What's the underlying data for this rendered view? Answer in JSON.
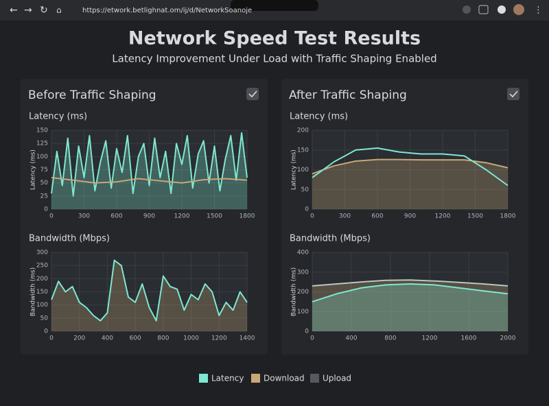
{
  "browser": {
    "url": "https://etwork.betlighnat.om/ij/d/NetworkSoanoje"
  },
  "header": {
    "title": "Network Speed Test Results",
    "subtitle": "Latency Improvement Under Load with Traffic Shaping Enabled"
  },
  "panels": [
    {
      "title": "Before Traffic Shaping",
      "charts": [
        {
          "type": "line",
          "title": "Latency (ms)",
          "ylabel": "Latency (ms)",
          "xlim": [
            0,
            1800
          ],
          "ylim": [
            0,
            150
          ],
          "xticks": [
            0,
            300,
            600,
            900,
            1200,
            1500,
            1800
          ],
          "yticks": [
            0,
            25,
            50,
            75,
            100,
            125,
            150
          ],
          "grid": true,
          "series": [
            {
              "color": "#7ee8d2",
              "fill": true,
              "x": [
                0,
                50,
                100,
                150,
                200,
                250,
                300,
                350,
                400,
                450,
                500,
                550,
                600,
                650,
                700,
                750,
                800,
                850,
                900,
                950,
                1000,
                1050,
                1100,
                1150,
                1200,
                1250,
                1300,
                1350,
                1400,
                1450,
                1500,
                1550,
                1600,
                1650,
                1700,
                1750,
                1800
              ],
              "values": [
                30,
                110,
                45,
                135,
                25,
                120,
                60,
                140,
                35,
                90,
                130,
                40,
                115,
                70,
                140,
                30,
                100,
                125,
                45,
                135,
                60,
                110,
                30,
                125,
                85,
                140,
                40,
                105,
                130,
                50,
                120,
                35,
                95,
                140,
                55,
                145,
                60
              ]
            },
            {
              "color": "#c8a878",
              "fill": false,
              "x": [
                0,
                200,
                400,
                600,
                800,
                1000,
                1200,
                1400,
                1600,
                1800
              ],
              "values": [
                60,
                55,
                50,
                52,
                58,
                54,
                50,
                56,
                58,
                55
              ]
            }
          ]
        },
        {
          "type": "line",
          "title": "Bandwidth (Mbps)",
          "ylabel": "Bandwidth (ms)",
          "xlim": [
            0,
            1400
          ],
          "ylim": [
            0,
            300
          ],
          "xticks": [
            0,
            200,
            400,
            600,
            800,
            1000,
            1200,
            1400
          ],
          "yticks": [
            0,
            50,
            100,
            150,
            200,
            250,
            300
          ],
          "grid": true,
          "series": [
            {
              "color": "#7ee8d2",
              "fill": true,
              "fillColor": "#c8a878",
              "x": [
                0,
                50,
                100,
                150,
                200,
                250,
                300,
                350,
                400,
                450,
                500,
                550,
                600,
                650,
                700,
                750,
                800,
                850,
                900,
                950,
                1000,
                1050,
                1100,
                1150,
                1200,
                1250,
                1300,
                1350,
                1400
              ],
              "values": [
                120,
                190,
                150,
                170,
                110,
                90,
                60,
                40,
                70,
                270,
                250,
                130,
                110,
                180,
                90,
                40,
                210,
                170,
                160,
                80,
                140,
                120,
                180,
                150,
                60,
                110,
                80,
                150,
                110
              ]
            }
          ]
        }
      ]
    },
    {
      "title": "After Traffic Shaping",
      "charts": [
        {
          "type": "line",
          "title": "Latency (ms)",
          "ylabel": "Latency (ms)",
          "xlim": [
            0,
            1800
          ],
          "ylim": [
            0,
            200
          ],
          "xticks": [
            0,
            300,
            600,
            900,
            1200,
            1500,
            1800
          ],
          "yticks": [
            0,
            50,
            100,
            150,
            200
          ],
          "grid": true,
          "series": [
            {
              "color": "#c8a878",
              "fill": true,
              "x": [
                0,
                200,
                400,
                600,
                800,
                1000,
                1200,
                1400,
                1600,
                1800
              ],
              "values": [
                90,
                110,
                122,
                126,
                126,
                125,
                125,
                125,
                118,
                105
              ]
            },
            {
              "color": "#7ee8d2",
              "fill": false,
              "x": [
                0,
                200,
                400,
                600,
                800,
                1000,
                1200,
                1400,
                1600,
                1800
              ],
              "values": [
                80,
                120,
                150,
                155,
                145,
                140,
                140,
                135,
                100,
                60
              ]
            }
          ]
        },
        {
          "type": "line",
          "title": "Bandwidth (Mbps)",
          "ylabel": "Bandwidth (ms)",
          "xlim": [
            0,
            2000
          ],
          "ylim": [
            0,
            400
          ],
          "xticks": [
            0,
            400,
            800,
            1200,
            1600,
            2000
          ],
          "yticks": [
            0,
            100,
            200,
            300,
            400
          ],
          "grid": true,
          "series": [
            {
              "color": "#b8c8c0",
              "fill": true,
              "fillColor": "#c8a878",
              "x": [
                0,
                250,
                500,
                750,
                1000,
                1250,
                1500,
                1750,
                2000
              ],
              "values": [
                230,
                240,
                250,
                258,
                260,
                255,
                248,
                240,
                230
              ]
            },
            {
              "color": "#7ee8d2",
              "fill": true,
              "x": [
                0,
                250,
                500,
                750,
                1000,
                1250,
                1500,
                1750,
                2000
              ],
              "values": [
                150,
                190,
                220,
                235,
                240,
                235,
                220,
                205,
                190
              ]
            }
          ]
        }
      ]
    }
  ],
  "legend": [
    {
      "label": "Latency",
      "color": "#7ee8d2"
    },
    {
      "label": "Download",
      "color": "#c8a878"
    },
    {
      "label": "Upload",
      "color": "#55595f"
    }
  ]
}
